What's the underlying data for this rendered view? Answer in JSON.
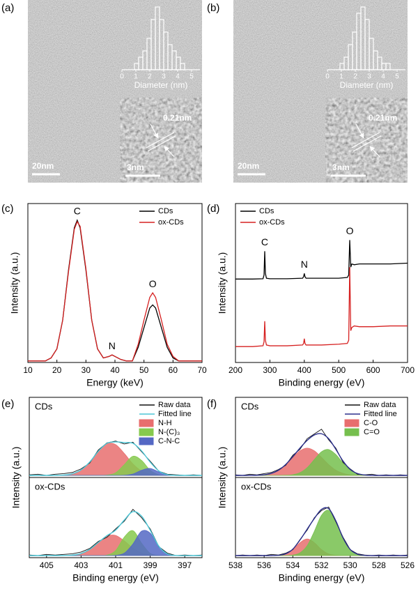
{
  "chart_data": [
    {
      "type": "micrograph",
      "panel_label": "(a)",
      "scale_bar": "20nm",
      "histogram": {
        "xlabel": "Diameter (nm)",
        "bins": [
          0.9,
          1.2,
          1.5,
          1.8,
          2.1,
          2.4,
          2.7,
          3.0,
          3.3,
          3.6,
          3.9,
          4.2,
          4.5
        ],
        "values": [
          1,
          2,
          3,
          5,
          8,
          10,
          8,
          6,
          4,
          3,
          2,
          1
        ],
        "xlim": [
          0,
          5.6
        ],
        "xticks": [
          0,
          1,
          2,
          3,
          4,
          5
        ],
        "ylim": [
          0,
          10
        ]
      },
      "inset": {
        "scale_bar": "3nm",
        "lattice_spacing": "0.21nm"
      }
    },
    {
      "type": "micrograph",
      "panel_label": "(b)",
      "scale_bar": "20nm",
      "histogram": {
        "xlabel": "Diameter (nm)",
        "bins": [
          0.9,
          1.2,
          1.5,
          1.8,
          2.1,
          2.4,
          2.7,
          3.0,
          3.3,
          3.6,
          3.9,
          4.2,
          4.5
        ],
        "values": [
          1,
          2,
          4,
          6,
          9,
          10,
          8,
          5,
          3,
          2,
          1,
          1
        ],
        "xlim": [
          0,
          5.6
        ],
        "xticks": [
          0,
          1,
          2,
          3,
          4,
          5
        ],
        "ylim": [
          0,
          10
        ]
      },
      "inset": {
        "scale_bar": "3nm",
        "lattice_spacing": "0.21nm"
      }
    },
    {
      "type": "line",
      "panel_label": "(c)",
      "xlabel": "Energy (keV)",
      "ylabel": "Intensity (a.u.)",
      "xlim": [
        10,
        70
      ],
      "xticks": [
        10,
        20,
        30,
        40,
        50,
        60,
        70
      ],
      "ylim": [
        0,
        1.05
      ],
      "legend": "upper right",
      "x": [
        10,
        12,
        14,
        16,
        18,
        20,
        22,
        24,
        26,
        27,
        28,
        30,
        32,
        34,
        36,
        38,
        39,
        40,
        42,
        44,
        46,
        48,
        50,
        52,
        53,
        54,
        56,
        58,
        60,
        62,
        64,
        66,
        68,
        70
      ],
      "series": [
        {
          "name": "CDs",
          "color": "#000000",
          "values": [
            0.01,
            0.01,
            0.01,
            0.01,
            0.03,
            0.09,
            0.28,
            0.61,
            0.89,
            0.94,
            0.89,
            0.61,
            0.28,
            0.09,
            0.03,
            0.04,
            0.05,
            0.04,
            0.02,
            0.01,
            0.01,
            0.1,
            0.23,
            0.36,
            0.38,
            0.36,
            0.23,
            0.1,
            0.03,
            0.01,
            0.01,
            0.01,
            0.01,
            0.01
          ]
        },
        {
          "name": "ox-CDs",
          "color": "#d62020",
          "values": [
            0.01,
            0.01,
            0.01,
            0.01,
            0.03,
            0.09,
            0.28,
            0.6,
            0.88,
            0.93,
            0.9,
            0.62,
            0.28,
            0.09,
            0.03,
            0.04,
            0.05,
            0.04,
            0.02,
            0.01,
            0.01,
            0.12,
            0.28,
            0.43,
            0.46,
            0.43,
            0.28,
            0.12,
            0.04,
            0.01,
            0.01,
            0.01,
            0.01,
            0.01
          ]
        }
      ],
      "annotations": [
        {
          "text": "C",
          "x": 27
        },
        {
          "text": "N",
          "x": 39
        },
        {
          "text": "O",
          "x": 53
        }
      ]
    },
    {
      "type": "line",
      "panel_label": "(d)",
      "xlabel": "Binding energy (eV)",
      "ylabel": "Intensity (a.u.)",
      "xlim": [
        200,
        700
      ],
      "xticks": [
        200,
        300,
        400,
        500,
        600,
        700
      ],
      "ylim": [
        0,
        1
      ],
      "legend": "upper left",
      "x": [
        200,
        250,
        280,
        283,
        285,
        287,
        290,
        300,
        350,
        395,
        398,
        400,
        402,
        405,
        450,
        500,
        525,
        529,
        532,
        535,
        538,
        545,
        560,
        600,
        650,
        700
      ],
      "series": [
        {
          "name": "CDs",
          "color": "#000000",
          "values": [
            0.525,
            0.525,
            0.527,
            0.55,
            0.7,
            0.56,
            0.53,
            0.527,
            0.527,
            0.53,
            0.54,
            0.56,
            0.54,
            0.53,
            0.53,
            0.53,
            0.535,
            0.55,
            0.77,
            0.6,
            0.62,
            0.615,
            0.62,
            0.62,
            0.62,
            0.625
          ]
        },
        {
          "name": "ox-CDs",
          "color": "#d62020",
          "values": [
            0.1,
            0.1,
            0.105,
            0.13,
            0.26,
            0.14,
            0.11,
            0.105,
            0.105,
            0.11,
            0.12,
            0.15,
            0.12,
            0.11,
            0.11,
            0.115,
            0.12,
            0.14,
            0.6,
            0.2,
            0.22,
            0.23,
            0.225,
            0.225,
            0.23,
            0.23
          ]
        }
      ],
      "annotations": [
        {
          "text": "C",
          "x": 285
        },
        {
          "text": "N",
          "x": 400
        },
        {
          "text": "O",
          "x": 532
        }
      ]
    },
    {
      "type": "xps",
      "panel_label": "(e)",
      "xlabel": "Binding energy (eV)",
      "ylabel": "Intensity (a.u.)",
      "xlim": [
        406,
        396
      ],
      "xticks": [
        405,
        403,
        401,
        399,
        397
      ],
      "ylim": [
        0,
        1
      ],
      "legend": "upper right",
      "x": [
        406,
        405.5,
        405,
        404.5,
        404,
        403.5,
        403,
        402.5,
        402,
        401.5,
        401,
        400.5,
        400,
        399.5,
        399,
        398.5,
        398,
        397.5,
        397,
        396.5,
        396
      ],
      "groups": [
        {
          "name": "CDs",
          "series": [
            {
              "name": "Raw data",
              "color": "#111111",
              "filled": false,
              "values": [
                0.01,
                0.02,
                0.0,
                0.02,
                0.03,
                0.05,
                0.11,
                0.21,
                0.43,
                0.55,
                0.58,
                0.53,
                0.56,
                0.4,
                0.24,
                0.07,
                0.02,
                0.01,
                0.0,
                0.01,
                0.0
              ]
            },
            {
              "name": "Fitted line",
              "color": "#4cc6d6",
              "filled": false,
              "values": [
                0,
                0,
                0,
                0.001,
                0.006,
                0.028,
                0.093,
                0.226,
                0.408,
                0.542,
                0.565,
                0.554,
                0.542,
                0.414,
                0.225,
                0.075,
                0.012,
                0.001,
                0,
                0,
                0
              ]
            },
            {
              "name": "N-H",
              "color": "#e86e6e",
              "filled": true,
              "values": [
                0,
                0,
                0,
                0.001,
                0.006,
                0.028,
                0.093,
                0.226,
                0.407,
                0.537,
                0.52,
                0.37,
                0.194,
                0.074,
                0.021,
                0.004,
                0,
                0,
                0,
                0,
                0
              ]
            },
            {
              "name": "N-(C)₃",
              "color": "#86c94e",
              "filled": true,
              "values": [
                0,
                0,
                0,
                0,
                0,
                0,
                0,
                0,
                0.001,
                0.005,
                0.045,
                0.182,
                0.324,
                0.253,
                0.086,
                0.013,
                0.001,
                0,
                0,
                0,
                0
              ]
            },
            {
              "name": "C-N-C",
              "color": "#5468c4",
              "filled": true,
              "values": [
                0,
                0,
                0,
                0,
                0,
                0,
                0,
                0,
                0,
                0,
                0,
                0.002,
                0.024,
                0.087,
                0.118,
                0.058,
                0.011,
                0.001,
                0,
                0,
                0
              ]
            }
          ]
        },
        {
          "name": "ox-CDs",
          "series": [
            {
              "values": [
                0.01,
                0.0,
                0.02,
                0.01,
                0.02,
                0.03,
                0.06,
                0.12,
                0.24,
                0.31,
                0.45,
                0.58,
                0.78,
                0.64,
                0.45,
                0.15,
                0.04,
                0.0,
                0.01,
                0.0,
                0.01
              ]
            },
            {
              "values": [
                0,
                0,
                0,
                0,
                0.001,
                0.008,
                0.035,
                0.105,
                0.222,
                0.337,
                0.429,
                0.6,
                0.742,
                0.666,
                0.428,
                0.158,
                0.027,
                0.002,
                0,
                0,
                0
              ]
            },
            {
              "values": [
                0,
                0,
                0,
                0,
                0.001,
                0.008,
                0.035,
                0.105,
                0.222,
                0.328,
                0.34,
                0.247,
                0.125,
                0.045,
                0.011,
                0.002,
                0,
                0,
                0,
                0,
                0
              ]
            },
            {
              "values": [
                0,
                0,
                0,
                0,
                0,
                0,
                0,
                0,
                0,
                0.009,
                0.085,
                0.312,
                0.421,
                0.209,
                0.038,
                0.003,
                0,
                0,
                0,
                0,
                0
              ]
            },
            {
              "values": [
                0,
                0,
                0,
                0,
                0,
                0,
                0,
                0,
                0,
                0,
                0.004,
                0.041,
                0.196,
                0.412,
                0.379,
                0.153,
                0.027,
                0.002,
                0,
                0,
                0
              ]
            }
          ]
        }
      ]
    },
    {
      "type": "xps",
      "panel_label": "(f)",
      "xlabel": "Binding energy (eV)",
      "ylabel": "Intensity (a.u.)",
      "xlim": [
        538,
        526
      ],
      "xticks": [
        538,
        536,
        534,
        532,
        530,
        528,
        526
      ],
      "ylim": [
        0,
        1
      ],
      "legend": "upper right",
      "x": [
        538,
        537.5,
        537,
        536.5,
        536,
        535.5,
        535,
        534.5,
        534,
        533.5,
        533,
        532.5,
        532,
        531.5,
        531,
        530.5,
        530,
        529.5,
        529,
        528.5,
        528,
        527.5,
        527,
        526.5,
        526
      ],
      "groups": [
        {
          "name": "CDs",
          "series": [
            {
              "name": "Raw data",
              "color": "#111111",
              "filled": false,
              "values": [
                0.01,
                0.0,
                0.02,
                0.01,
                0.03,
                0.05,
                0.1,
                0.17,
                0.34,
                0.44,
                0.62,
                0.7,
                0.78,
                0.6,
                0.46,
                0.22,
                0.11,
                0.02,
                0.01,
                0.02,
                0.0,
                0.01,
                0.0,
                0.01,
                0.0
              ]
            },
            {
              "name": "Fitted line",
              "color": "#2b2f8c",
              "filled": false,
              "values": [
                0,
                0,
                0.001,
                0.003,
                0.011,
                0.035,
                0.088,
                0.184,
                0.316,
                0.462,
                0.591,
                0.682,
                0.703,
                0.619,
                0.44,
                0.243,
                0.102,
                0.032,
                0.008,
                0.001,
                0,
                0,
                0,
                0,
                0
              ]
            },
            {
              "name": "C-O",
              "color": "#e86e6e",
              "filled": true,
              "values": [
                0,
                0,
                0.001,
                0.003,
                0.011,
                0.035,
                0.088,
                0.182,
                0.304,
                0.415,
                0.46,
                0.415,
                0.304,
                0.182,
                0.088,
                0.035,
                0.011,
                0.003,
                0.001,
                0,
                0,
                0,
                0,
                0,
                0
              ]
            },
            {
              "name": "C=O",
              "color": "#76bf4e",
              "filled": true,
              "values": [
                0,
                0,
                0,
                0,
                0,
                0,
                0,
                0.002,
                0.012,
                0.047,
                0.131,
                0.267,
                0.399,
                0.437,
                0.352,
                0.208,
                0.091,
                0.029,
                0.007,
                0.001,
                0,
                0,
                0,
                0,
                0
              ]
            }
          ]
        },
        {
          "name": "ox-CDs",
          "series": [
            {
              "values": [
                0.0,
                0.01,
                0.0,
                0.01,
                0.0,
                0.02,
                0.01,
                0.04,
                0.1,
                0.27,
                0.43,
                0.64,
                0.76,
                0.82,
                0.57,
                0.31,
                0.1,
                0.03,
                0.01,
                0.0,
                0.01,
                0.0,
                0.01,
                0.0,
                0.01
              ]
            },
            {
              "values": [
                0,
                0,
                0,
                0,
                0,
                0,
                0.005,
                0.029,
                0.109,
                0.263,
                0.446,
                0.626,
                0.78,
                0.792,
                0.586,
                0.299,
                0.104,
                0.024,
                0.004,
                0,
                0,
                0,
                0,
                0,
                0
              ]
            },
            {
              "values": [
                0,
                0,
                0,
                0,
                0,
                0,
                0.005,
                0.028,
                0.101,
                0.217,
                0.28,
                0.217,
                0.101,
                0.028,
                0.005,
                0,
                0,
                0,
                0,
                0,
                0,
                0,
                0,
                0,
                0
              ]
            },
            {
              "values": [
                0,
                0,
                0,
                0,
                0,
                0,
                0,
                0.001,
                0.008,
                0.046,
                0.166,
                0.409,
                0.679,
                0.764,
                0.581,
                0.299,
                0.104,
                0.024,
                0.004,
                0,
                0,
                0,
                0,
                0,
                0
              ]
            }
          ]
        }
      ]
    }
  ]
}
